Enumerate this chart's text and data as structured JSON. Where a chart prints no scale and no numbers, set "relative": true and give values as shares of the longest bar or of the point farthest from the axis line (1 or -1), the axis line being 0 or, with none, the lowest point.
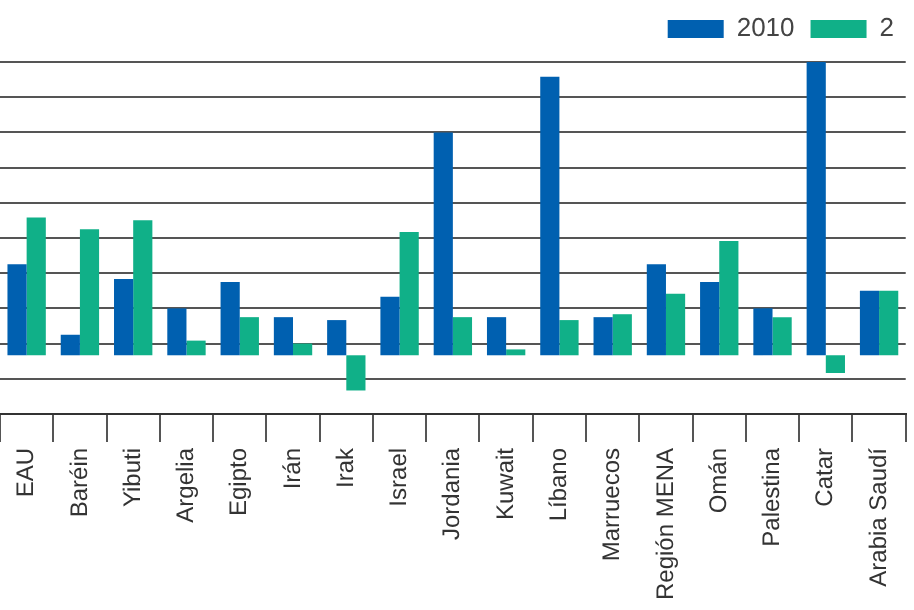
{
  "chart_data": {
    "type": "bar",
    "relative": true,
    "grid": "y",
    "legend": "top right",
    "categories": [
      "EAU",
      "Baréin",
      "Yibuti",
      "Argelia",
      "Egipto",
      "Irán",
      "Irak",
      "Israel",
      "Jordania",
      "Kuwait",
      "Líbano",
      "Marruecos",
      "Región MENA",
      "Omán",
      "Palestina",
      "Catar",
      "Arabia Saudí"
    ],
    "series": [
      {
        "name": "2010",
        "color": "#0060b0",
        "values": [
          0.31,
          0.07,
          0.26,
          0.16,
          0.25,
          0.13,
          0.12,
          0.2,
          0.76,
          0.13,
          0.95,
          0.13,
          0.31,
          0.25,
          0.16,
          1,
          0.22
        ]
      },
      {
        "name": "2",
        "color": "#10b088",
        "values": [
          0.47,
          0.43,
          0.46,
          0.05,
          0.13,
          0.04,
          -0.12,
          0.42,
          0.13,
          0.02,
          0.12,
          0.14,
          0.21,
          0.39,
          0.13,
          -0.06,
          0.22
        ]
      }
    ]
  }
}
